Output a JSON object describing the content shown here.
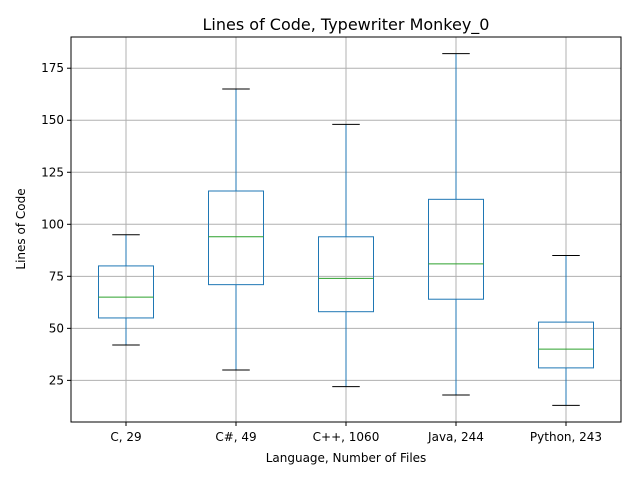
{
  "chart_data": {
    "type": "box",
    "title": "Lines of Code, Typewriter Monkey_0",
    "xlabel": "Language, Number of Files",
    "ylabel": "Lines of Code",
    "categories": [
      "C, 29",
      "C#, 49",
      "C++, 1060",
      "Java, 244",
      "Python, 243"
    ],
    "boxes": [
      {
        "whisker_low": 42,
        "q1": 55,
        "median": 65,
        "q3": 80,
        "whisker_high": 95
      },
      {
        "whisker_low": 30,
        "q1": 71,
        "median": 94,
        "q3": 116,
        "whisker_high": 165
      },
      {
        "whisker_low": 22,
        "q1": 58,
        "median": 74,
        "q3": 94,
        "whisker_high": 148
      },
      {
        "whisker_low": 18,
        "q1": 64,
        "median": 81,
        "q3": 112,
        "whisker_high": 182
      },
      {
        "whisker_low": 13,
        "q1": 31,
        "median": 40,
        "q3": 53,
        "whisker_high": 85
      }
    ],
    "ylim": [
      5,
      190
    ],
    "yticks": [
      25,
      50,
      75,
      100,
      125,
      150,
      175
    ],
    "grid": true,
    "colors": {
      "box": "#1f77b4",
      "median": "#2ca02c",
      "cap": "#000000",
      "grid": "#b0b0b0"
    }
  }
}
